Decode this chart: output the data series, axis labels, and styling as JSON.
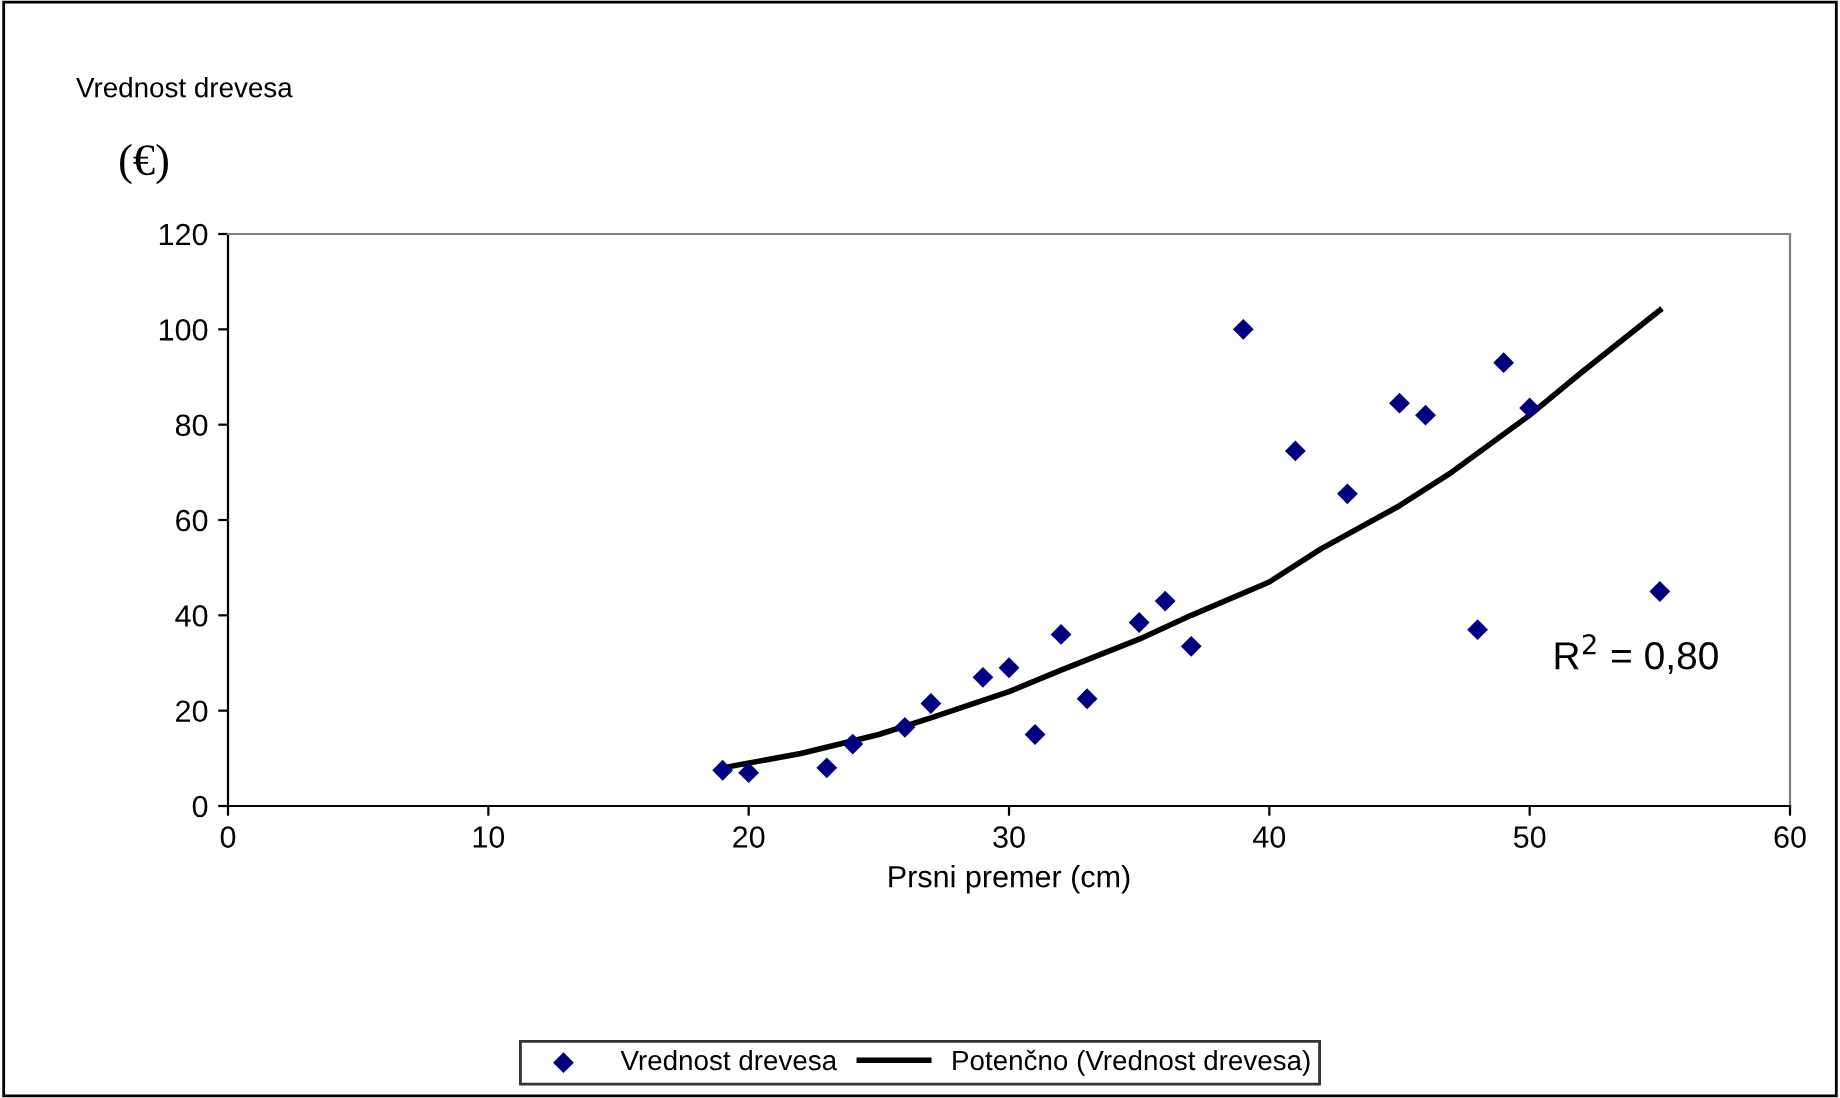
{
  "chart_data": {
    "type": "scatter",
    "xlabel": "Prsni premer (cm)",
    "ylabel": "Vrednost drevesa",
    "xlim": [
      0,
      60
    ],
    "xticks": [
      0,
      10,
      20,
      30,
      40,
      50,
      60
    ],
    "ylim": [
      0,
      120
    ],
    "yticks": [
      0,
      20,
      40,
      60,
      80,
      100,
      120
    ],
    "grid": false,
    "legend": "bottom",
    "annotations": [
      "(€)",
      "R$^{2}$ = 0,80"
    ],
    "series": [
      {
        "name": "Vrednost drevesa",
        "marker": "diamond",
        "color": "#000080",
        "x": [
          19,
          20,
          23,
          24,
          26,
          27,
          29,
          30,
          31,
          32,
          33,
          35,
          36,
          37,
          39,
          41,
          43,
          45,
          46,
          48,
          49,
          50,
          55
        ],
        "values": [
          7.5,
          7,
          8,
          13,
          16.5,
          21.5,
          27,
          29,
          15,
          36,
          22.5,
          38.5,
          43,
          33.5,
          100,
          74.5,
          65.5,
          84.5,
          82,
          37,
          93,
          83.5,
          45
        ]
      },
      {
        "name": "Potenčno (Vrednost drevesa)",
        "type": "line",
        "marker": "none",
        "line_style": "solid",
        "color": "#000000",
        "x": [
          19,
          22,
          25,
          27,
          30,
          32,
          35,
          37,
          40,
          42,
          45,
          47,
          50,
          52,
          55
        ],
        "values": [
          8,
          11,
          15,
          18.5,
          24,
          28.5,
          35,
          40,
          47,
          54,
          63,
          70,
          82,
          91,
          104
        ]
      }
    ]
  }
}
